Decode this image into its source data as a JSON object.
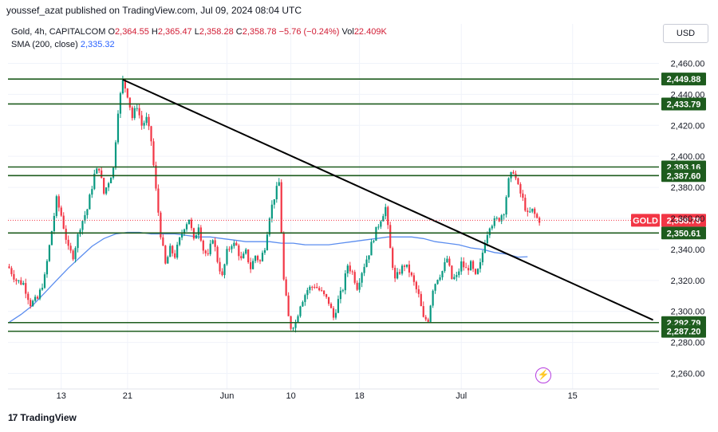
{
  "header": {
    "credit": "youssef_azat published on TradingView.com, Jul 09, 2024 08:04 UTC"
  },
  "legend": {
    "symbol": "Gold, 4h, CAPITALCOM",
    "o_label": "O",
    "o": "2,364.55",
    "h_label": "H",
    "h": "2,365.47",
    "l_label": "L",
    "l": "2,358.28",
    "c_label": "C",
    "c": "2,358.78",
    "change": "−5.76 (−0.24%)",
    "vol_label": "Vol",
    "vol": "22.409K",
    "sma_label": "SMA (200, close)",
    "sma_value": "2,335.32"
  },
  "currency_button": "USD",
  "footer": {
    "brand": "TradingView",
    "brand_mark": "17"
  },
  "colors": {
    "up": "#089981",
    "down": "#f23645",
    "level": "#1e5c1e",
    "trend": "#000000",
    "sma": "#5b8def",
    "price": "#f23645"
  },
  "chart_data": {
    "type": "candlestick",
    "ylim": [
      2250,
      2470
    ],
    "y_ticks": [
      "2,260.00",
      "2,280.00",
      "2,300.00",
      "2,320.00",
      "2,340.00",
      "2,360.00",
      "2,380.00",
      "2,400.00",
      "2,420.00",
      "2,440.00",
      "2,460.00"
    ],
    "x_ticks": [
      {
        "label": "13",
        "i": 22
      },
      {
        "label": "21",
        "i": 50
      },
      {
        "label": "Jun",
        "i": 92
      },
      {
        "label": "10",
        "i": 119
      },
      {
        "label": "18",
        "i": 148
      },
      {
        "label": "Jul",
        "i": 191
      },
      {
        "label": "15",
        "i": 238
      }
    ],
    "n_slots": 275,
    "horizontal_levels": [
      {
        "value": 2449.88,
        "label": "2,449.88"
      },
      {
        "value": 2433.79,
        "label": "2,433.79"
      },
      {
        "value": 2393.16,
        "label": "2,393.16"
      },
      {
        "value": 2387.6,
        "label": "2,387.60"
      },
      {
        "value": 2350.61,
        "label": "2,350.61"
      },
      {
        "value": 2292.79,
        "label": "2,292.79"
      },
      {
        "value": 2287.2,
        "label": "2,287.20"
      }
    ],
    "current_price": {
      "label": "GOLD",
      "value": 2358.78,
      "text": "2,358.78"
    },
    "trendline": {
      "from": {
        "i": 48,
        "value": 2449.5
      },
      "to": {
        "i": 272,
        "value": 2294.5
      }
    },
    "anchors": [
      [
        0,
        2328
      ],
      [
        3,
        2320
      ],
      [
        6,
        2318
      ],
      [
        9,
        2305
      ],
      [
        12,
        2308
      ],
      [
        15,
        2322
      ],
      [
        18,
        2352
      ],
      [
        20,
        2372
      ],
      [
        22,
        2362
      ],
      [
        25,
        2340
      ],
      [
        27,
        2336
      ],
      [
        30,
        2355
      ],
      [
        33,
        2366
      ],
      [
        36,
        2388
      ],
      [
        38,
        2393
      ],
      [
        40,
        2376
      ],
      [
        42,
        2384
      ],
      [
        44,
        2392
      ],
      [
        46,
        2430
      ],
      [
        48,
        2449
      ],
      [
        50,
        2440
      ],
      [
        52,
        2425
      ],
      [
        54,
        2433
      ],
      [
        56,
        2420
      ],
      [
        58,
        2424
      ],
      [
        60,
        2410
      ],
      [
        62,
        2378
      ],
      [
        64,
        2350
      ],
      [
        66,
        2330
      ],
      [
        68,
        2340
      ],
      [
        70,
        2336
      ],
      [
        72,
        2346
      ],
      [
        74,
        2355
      ],
      [
        76,
        2360
      ],
      [
        78,
        2345
      ],
      [
        80,
        2356
      ],
      [
        82,
        2340
      ],
      [
        84,
        2335
      ],
      [
        86,
        2348
      ],
      [
        88,
        2333
      ],
      [
        90,
        2322
      ],
      [
        92,
        2338
      ],
      [
        94,
        2344
      ],
      [
        96,
        2342
      ],
      [
        98,
        2333
      ],
      [
        100,
        2338
      ],
      [
        102,
        2328
      ],
      [
        104,
        2336
      ],
      [
        106,
        2332
      ],
      [
        108,
        2342
      ],
      [
        110,
        2362
      ],
      [
        112,
        2374
      ],
      [
        114,
        2383
      ],
      [
        116,
        2320
      ],
      [
        118,
        2296
      ],
      [
        119,
        2290
      ],
      [
        121,
        2293
      ],
      [
        123,
        2305
      ],
      [
        126,
        2314
      ],
      [
        129,
        2317
      ],
      [
        132,
        2312
      ],
      [
        135,
        2306
      ],
      [
        137,
        2296
      ],
      [
        139,
        2307
      ],
      [
        141,
        2315
      ],
      [
        143,
        2330
      ],
      [
        145,
        2325
      ],
      [
        147,
        2316
      ],
      [
        149,
        2326
      ],
      [
        152,
        2338
      ],
      [
        154,
        2348
      ],
      [
        157,
        2360
      ],
      [
        159,
        2367
      ],
      [
        161,
        2340
      ],
      [
        163,
        2320
      ],
      [
        165,
        2326
      ],
      [
        167,
        2330
      ],
      [
        169,
        2326
      ],
      [
        171,
        2318
      ],
      [
        173,
        2310
      ],
      [
        175,
        2295
      ],
      [
        177,
        2295
      ],
      [
        179,
        2315
      ],
      [
        181,
        2322
      ],
      [
        183,
        2326
      ],
      [
        185,
        2334
      ],
      [
        187,
        2321
      ],
      [
        189,
        2322
      ],
      [
        191,
        2331
      ],
      [
        193,
        2327
      ],
      [
        195,
        2330
      ],
      [
        197,
        2322
      ],
      [
        199,
        2330
      ],
      [
        201,
        2346
      ],
      [
        203,
        2356
      ],
      [
        205,
        2358
      ],
      [
        207,
        2360
      ],
      [
        209,
        2365
      ],
      [
        211,
        2384
      ],
      [
        213,
        2391
      ],
      [
        215,
        2380
      ],
      [
        217,
        2372
      ],
      [
        219,
        2362
      ],
      [
        221,
        2365
      ],
      [
        223,
        2360
      ],
      [
        224,
        2359
      ]
    ],
    "sma_points": [
      [
        0,
        2293
      ],
      [
        5,
        2298
      ],
      [
        10,
        2304
      ],
      [
        15,
        2312
      ],
      [
        20,
        2320
      ],
      [
        25,
        2328
      ],
      [
        30,
        2335
      ],
      [
        35,
        2342
      ],
      [
        40,
        2347
      ],
      [
        45,
        2350
      ],
      [
        50,
        2351
      ],
      [
        55,
        2351
      ],
      [
        60,
        2350
      ],
      [
        65,
        2350
      ],
      [
        70,
        2350
      ],
      [
        75,
        2349
      ],
      [
        80,
        2348
      ],
      [
        85,
        2348
      ],
      [
        90,
        2347
      ],
      [
        95,
        2346
      ],
      [
        100,
        2345
      ],
      [
        105,
        2345
      ],
      [
        110,
        2345
      ],
      [
        115,
        2344
      ],
      [
        120,
        2344
      ],
      [
        125,
        2343
      ],
      [
        130,
        2343
      ],
      [
        135,
        2343
      ],
      [
        140,
        2344
      ],
      [
        145,
        2345
      ],
      [
        150,
        2346
      ],
      [
        155,
        2347
      ],
      [
        160,
        2348
      ],
      [
        165,
        2348
      ],
      [
        170,
        2348
      ],
      [
        175,
        2347
      ],
      [
        180,
        2345
      ],
      [
        185,
        2344
      ],
      [
        190,
        2343
      ],
      [
        195,
        2341
      ],
      [
        200,
        2340
      ],
      [
        205,
        2338
      ],
      [
        210,
        2337
      ],
      [
        215,
        2335
      ],
      [
        219,
        2335.3
      ]
    ]
  }
}
